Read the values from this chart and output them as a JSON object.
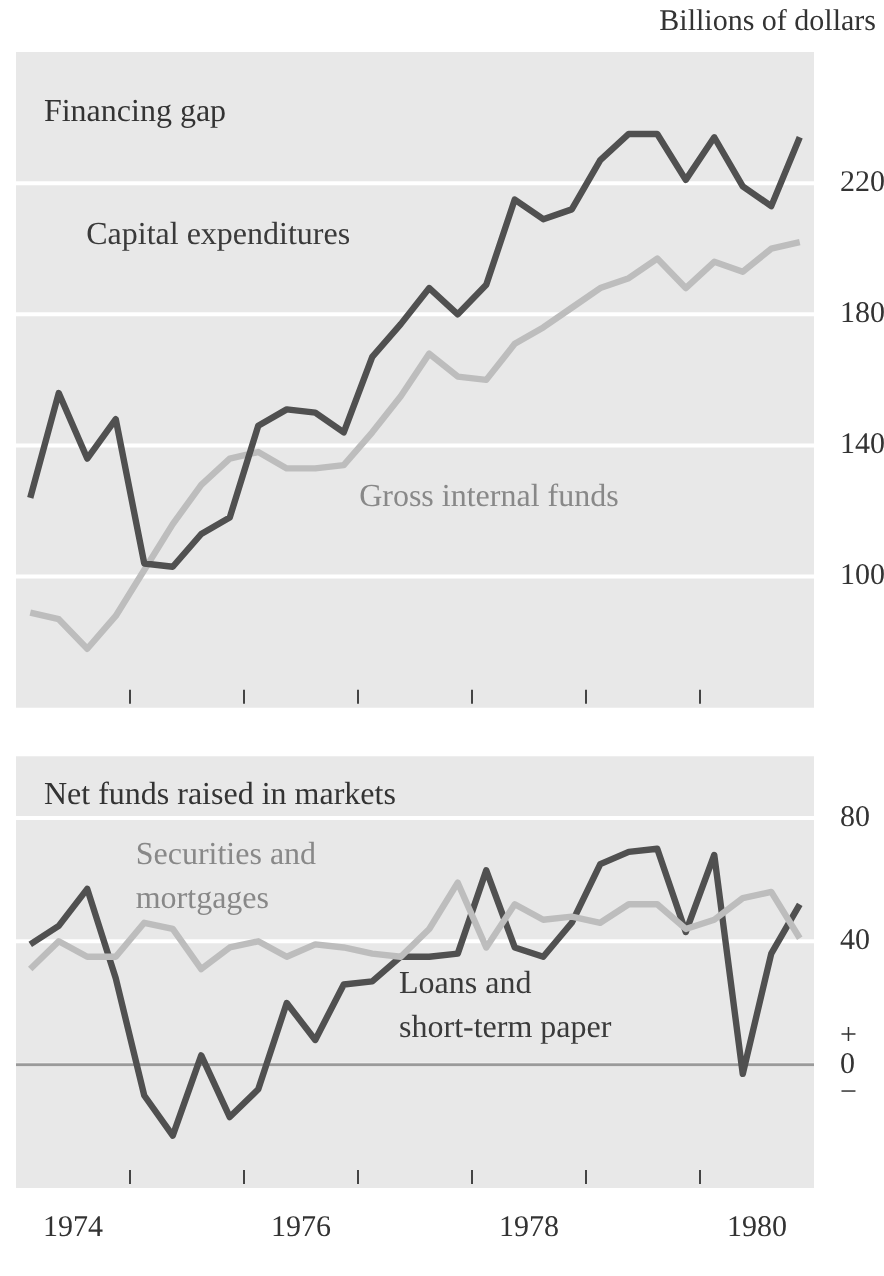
{
  "chart_data": [
    {
      "type": "line",
      "title": "Financing gap",
      "ylabel": "Billions of dollars",
      "marker": "none",
      "grid": "y",
      "tick_labels": "y",
      "x": [
        1974.125,
        1974.375,
        1974.625,
        1974.875,
        1975.125,
        1975.375,
        1975.625,
        1975.875,
        1976.125,
        1976.375,
        1976.625,
        1976.875,
        1977.125,
        1977.375,
        1977.625,
        1977.875,
        1978.125,
        1978.375,
        1978.625,
        1978.875,
        1979.125,
        1979.375,
        1979.625,
        1979.875,
        1980.125,
        1980.375,
        1980.625,
        1980.875
      ],
      "series": [
        {
          "name": "Capital expenditures",
          "color": "#505050",
          "values": [
            124,
            156,
            136,
            148,
            104,
            103,
            113,
            118,
            146,
            151,
            150,
            144,
            167,
            177,
            188,
            180,
            189,
            215,
            209,
            212,
            227,
            235,
            235,
            221,
            234,
            219,
            213,
            234
          ]
        },
        {
          "name": "Gross internal funds",
          "color": "#bdbdbd",
          "values": [
            89,
            87,
            78,
            88,
            102,
            116,
            128,
            136,
            138,
            133,
            133,
            134,
            144,
            155,
            168,
            161,
            160,
            171,
            176,
            182,
            188,
            191,
            197,
            188,
            196,
            193,
            200,
            202
          ]
        }
      ],
      "xlim": [
        1974,
        1981
      ],
      "xticks": [
        {
          "value": 1975,
          "label": null
        },
        {
          "value": 1976,
          "label": null
        },
        {
          "value": 1977,
          "label": null
        },
        {
          "value": 1978,
          "label": null
        },
        {
          "value": 1979,
          "label": null
        },
        {
          "value": 1980,
          "label": null
        }
      ],
      "ylim": [
        60,
        260
      ],
      "yticks": [
        100,
        140,
        180,
        220
      ]
    },
    {
      "type": "line",
      "title": "Net funds raised in markets",
      "marker": "none",
      "grid": "y",
      "x": [
        1974.125,
        1974.375,
        1974.625,
        1974.875,
        1975.125,
        1975.375,
        1975.625,
        1975.875,
        1976.125,
        1976.375,
        1976.625,
        1976.875,
        1977.125,
        1977.375,
        1977.625,
        1977.875,
        1978.125,
        1978.375,
        1978.625,
        1978.875,
        1979.125,
        1979.375,
        1979.625,
        1979.875,
        1980.125,
        1980.375,
        1980.625,
        1980.875
      ],
      "series": [
        {
          "name": "Securities and mortgages",
          "color": "#bdbdbd",
          "values": [
            31,
            40,
            35,
            35,
            46,
            44,
            31,
            38,
            40,
            35,
            39,
            38,
            36,
            35,
            44,
            59,
            38,
            52,
            47,
            48,
            46,
            52,
            52,
            44,
            47,
            54,
            56,
            41
          ]
        },
        {
          "name": "Loans and short-term paper",
          "color": "#505050",
          "values": [
            39,
            45,
            57,
            28,
            -10,
            -23,
            3,
            -17,
            -8,
            20,
            8,
            26,
            27,
            35,
            35,
            36,
            63,
            38,
            35,
            46,
            65,
            69,
            70,
            43,
            68,
            -3,
            36,
            52
          ]
        }
      ],
      "xlim": [
        1974,
        1981
      ],
      "xticks": [
        {
          "value": 1974.5,
          "label": "1974"
        },
        {
          "value": 1975,
          "label": null
        },
        {
          "value": 1976,
          "label": null
        },
        {
          "value": 1976.5,
          "label": "1976"
        },
        {
          "value": 1977,
          "label": null
        },
        {
          "value": 1978,
          "label": null
        },
        {
          "value": 1978.5,
          "label": "1978"
        },
        {
          "value": 1979,
          "label": null
        },
        {
          "value": 1980,
          "label": null
        },
        {
          "value": 1980.5,
          "label": "1980"
        }
      ],
      "ylim": [
        -40,
        100
      ],
      "yticks": [
        {
          "value": 0,
          "label": "+ 0 −"
        },
        40,
        80
      ],
      "ref_lines": [
        {
          "axis": "y",
          "value": 0,
          "color": "#9a9a9a"
        }
      ]
    }
  ]
}
